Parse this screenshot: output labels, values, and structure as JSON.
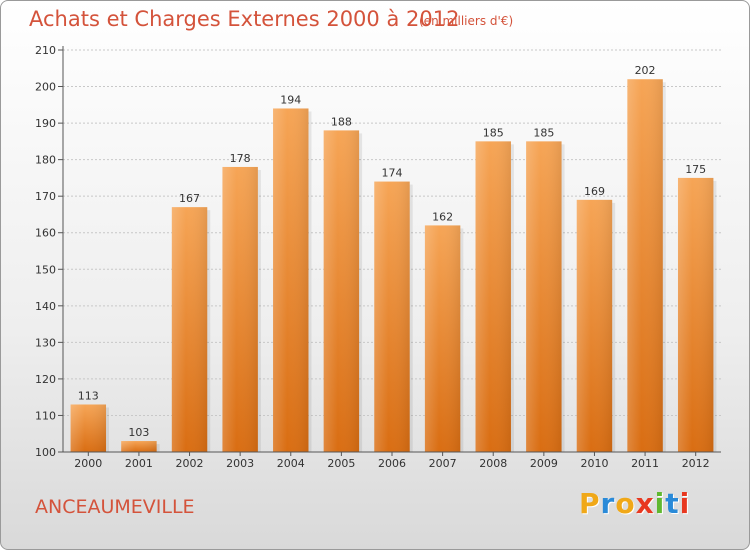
{
  "title": "Achats et Charges Externes 2000 à 2012",
  "subtitle": "(en milliers d'€)",
  "commune": "ANCEAUMEVILLE",
  "logo": {
    "letters": [
      "P",
      "r",
      "o",
      "x",
      "i",
      "t",
      "i"
    ],
    "colors": [
      "#f0a818",
      "#2a8ad8",
      "#f0a818",
      "#e83820",
      "#60b830",
      "#2a8ad8",
      "#e83820"
    ]
  },
  "chart_data": {
    "type": "bar",
    "categories": [
      "2000",
      "2001",
      "2002",
      "2003",
      "2004",
      "2005",
      "2006",
      "2007",
      "2008",
      "2009",
      "2010",
      "2011",
      "2012"
    ],
    "values": [
      113,
      103,
      167,
      178,
      194,
      188,
      174,
      162,
      185,
      185,
      169,
      202,
      175
    ],
    "yticks": [
      100,
      110,
      120,
      130,
      140,
      150,
      160,
      170,
      180,
      190,
      200,
      210
    ],
    "ylim": [
      100,
      210
    ],
    "grid": true,
    "bar_color": "#f08a2a"
  }
}
